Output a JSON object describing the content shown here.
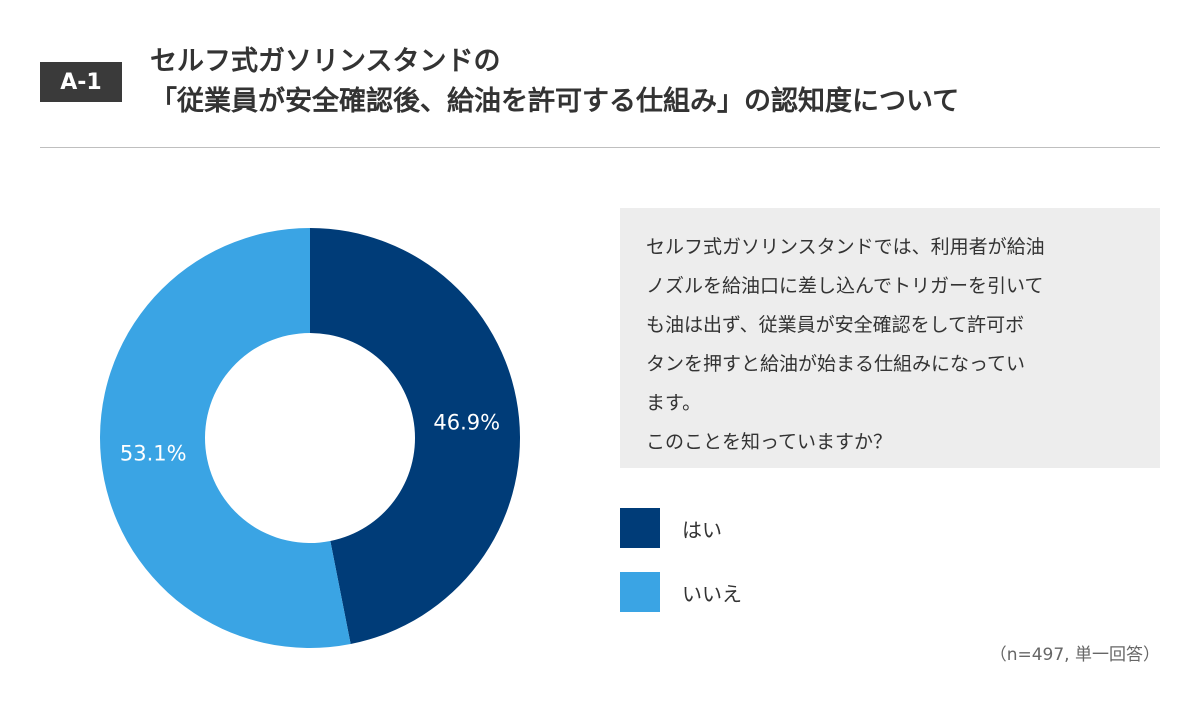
{
  "badge": "A-1",
  "title": {
    "line1": "セルフ式ガソリンスタンドの",
    "line2": "「従業員が安全確認後、給油を許可する仕組み」の認知度について"
  },
  "question": {
    "lines": [
      "セルフ式ガソリンスタンドでは、利用者が給油",
      "ノズルを給油口に差し込んでトリガーを引いて",
      "も油は出ず、従業員が安全確認をして許可ボ",
      "タンを押すと給油が始まる仕組みになってい",
      "ます。",
      "このことを知っていますか？"
    ]
  },
  "note": "（n=497, 単一回答）",
  "chart_data": {
    "type": "pie",
    "donut": true,
    "categories": [
      "はい",
      "いいえ"
    ],
    "values": [
      46.9,
      53.1
    ],
    "data_labels": [
      "46.9%",
      "53.1%"
    ],
    "colors": [
      "#003c78",
      "#3aa4e4"
    ],
    "start_angle": "12 o'clock, clockwise",
    "legend_placement": "right"
  }
}
